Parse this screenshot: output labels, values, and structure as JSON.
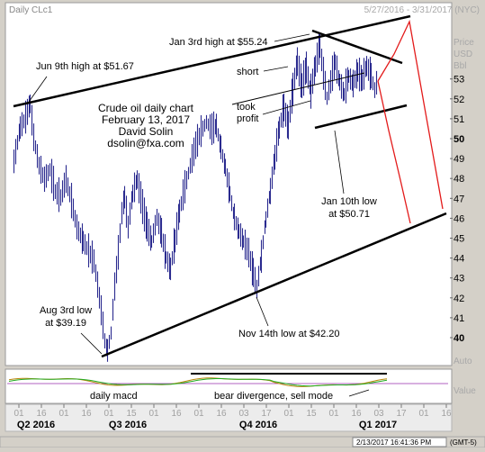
{
  "window": {
    "title": "Daily CLc1",
    "date_range": "5/27/2016 - 3/31/2017 (NYC)",
    "status_time": "2/13/2017 16:41:36 PM",
    "timezone": "(GMT-5)"
  },
  "right_panel": {
    "unit_lines": [
      "Price",
      "USD",
      "Bbl"
    ],
    "auto_label": "Auto",
    "value_label": "Value"
  },
  "chart_data": {
    "type": "candlestick",
    "ticker": "CLc1",
    "period": "Daily",
    "y_ticks": [
      40,
      41,
      42,
      43,
      44,
      45,
      46,
      47,
      48,
      49,
      50,
      51,
      52,
      53
    ],
    "ylim": [
      39,
      55.7
    ],
    "x_day_ticks": [
      "01",
      "16",
      "01",
      "16",
      "01",
      "15",
      "01",
      "16",
      "01",
      "16",
      "03",
      "17",
      "01",
      "15",
      "01",
      "16",
      "03",
      "17",
      "01",
      "16"
    ],
    "quarter_labels": [
      "Q2 2016",
      "Q3 2016",
      "Q4 2016",
      "Q1 2017"
    ],
    "annotations": {
      "chart_caption": [
        "Crude oil daily chart",
        "February 13, 2017",
        "David Solin",
        "dsolin@fxa.com"
      ],
      "jun9": "Jun 9th high at $51.67",
      "jan3": "Jan 3rd high at $55.24",
      "short": "short",
      "took_profit": [
        "took",
        "profit"
      ],
      "jan10": [
        "Jan 10th low",
        "at $50.71"
      ],
      "aug3": [
        "Aug 3rd low",
        "at $39.19"
      ],
      "nov14": "Nov 14th low at $42.20",
      "macd": "daily macd",
      "bear": "bear divergence, sell mode"
    },
    "key_levels": {
      "jun9_high": 51.67,
      "aug3_low": 39.19,
      "nov14_low": 42.2,
      "jan3_high": 55.24,
      "jan10_low": 50.71
    },
    "colors": {
      "bars": "#2b2b8f",
      "trendlines": "#000000",
      "projection": "#e31a1a",
      "macd_fast": "#b8860b",
      "macd_slow": "#22aa22",
      "macd_zero": "#b060c0"
    }
  }
}
